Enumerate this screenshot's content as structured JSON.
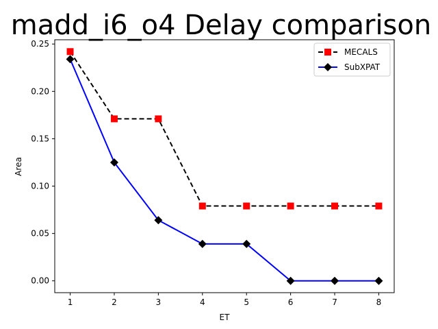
{
  "chart_data": {
    "type": "line",
    "title": "madd_i6_o4 Delay comparison",
    "xlabel": "ET",
    "ylabel": "Area",
    "x": [
      1,
      2,
      3,
      4,
      5,
      6,
      7,
      8
    ],
    "xlim": [
      0.65,
      8.35
    ],
    "ylim": [
      -0.0125,
      0.2545
    ],
    "xticks": [
      "1",
      "2",
      "3",
      "4",
      "5",
      "6",
      "7",
      "8"
    ],
    "yticks": [
      "0.00",
      "0.05",
      "0.10",
      "0.15",
      "0.20",
      "0.25"
    ],
    "grid": false,
    "legend_position": "top-right",
    "series": [
      {
        "name": "MECALS",
        "values": [
          0.242,
          0.171,
          0.171,
          0.079,
          0.079,
          0.079,
          0.079,
          0.079
        ],
        "line_color": "#000000",
        "marker_color": "#ff0000",
        "line_style": "dashed",
        "marker": "square"
      },
      {
        "name": "SubXPAT",
        "values": [
          0.234,
          0.125,
          0.064,
          0.039,
          0.039,
          0.0,
          0.0,
          0.0
        ],
        "line_color": "#0000ff",
        "marker_color": "#000000",
        "line_style": "solid",
        "marker": "diamond"
      }
    ]
  }
}
